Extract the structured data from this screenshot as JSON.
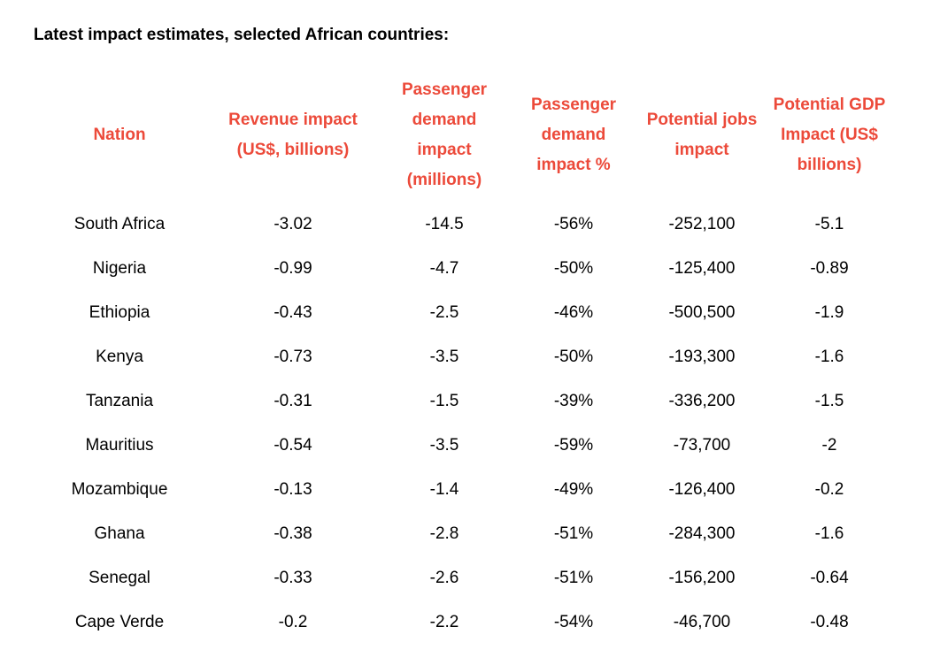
{
  "title": "Latest impact estimates, selected African countries:",
  "colors": {
    "header": "#ec4a3a",
    "text": "#000000",
    "background": "#ffffff"
  },
  "columns": [
    {
      "key": "nation",
      "lines": [
        "Nation"
      ]
    },
    {
      "key": "revenue",
      "lines": [
        "Revenue impact",
        "(US$, billions)"
      ]
    },
    {
      "key": "passengers",
      "lines": [
        "Passenger",
        "demand",
        "impact",
        "(millions)"
      ]
    },
    {
      "key": "passenger_pct",
      "lines": [
        "Passenger",
        "demand",
        "impact %"
      ]
    },
    {
      "key": "jobs",
      "lines": [
        "Potential jobs",
        "impact"
      ]
    },
    {
      "key": "gdp",
      "lines": [
        "Potential GDP",
        "Impact (US$",
        "billions)"
      ]
    }
  ],
  "rows": [
    [
      "South Africa",
      "-3.02",
      "-14.5",
      "-56%",
      "-252,100",
      "-5.1"
    ],
    [
      "Nigeria",
      "-0.99",
      "-4.7",
      "-50%",
      "-125,400",
      "-0.89"
    ],
    [
      "Ethiopia",
      "-0.43",
      "-2.5",
      "-46%",
      "-500,500",
      "-1.9"
    ],
    [
      "Kenya",
      "-0.73",
      "-3.5",
      "-50%",
      "-193,300",
      "-1.6"
    ],
    [
      "Tanzania",
      "-0.31",
      "-1.5",
      "-39%",
      "-336,200",
      "-1.5"
    ],
    [
      "Mauritius",
      "-0.54",
      "-3.5",
      "-59%",
      "-73,700",
      "-2"
    ],
    [
      "Mozambique",
      "-0.13",
      "-1.4",
      "-49%",
      "-126,400",
      "-0.2"
    ],
    [
      "Ghana",
      "-0.38",
      "-2.8",
      "-51%",
      "-284,300",
      "-1.6"
    ],
    [
      "Senegal",
      "-0.33",
      "-2.6",
      "-51%",
      "-156,200",
      "-0.64"
    ],
    [
      "Cape Verde",
      "-0.2",
      "-2.2",
      "-54%",
      "-46,700",
      "-0.48"
    ]
  ],
  "chart_data": {
    "type": "table",
    "title": "Latest impact estimates, selected African countries:",
    "headers": [
      "Nation",
      "Revenue impact (US$, billions)",
      "Passenger demand impact (millions)",
      "Passenger demand impact %",
      "Potential jobs impact",
      "Potential GDP Impact (US$ billions)"
    ],
    "categories": [
      "South Africa",
      "Nigeria",
      "Ethiopia",
      "Kenya",
      "Tanzania",
      "Mauritius",
      "Mozambique",
      "Ghana",
      "Senegal",
      "Cape Verde"
    ],
    "series": [
      {
        "name": "Revenue impact (US$, billions)",
        "values": [
          -3.02,
          -0.99,
          -0.43,
          -0.73,
          -0.31,
          -0.54,
          -0.13,
          -0.38,
          -0.33,
          -0.2
        ]
      },
      {
        "name": "Passenger demand impact (millions)",
        "values": [
          -14.5,
          -4.7,
          -2.5,
          -3.5,
          -1.5,
          -3.5,
          -1.4,
          -2.8,
          -2.6,
          -2.2
        ]
      },
      {
        "name": "Passenger demand impact %",
        "values": [
          -56,
          -50,
          -46,
          -50,
          -39,
          -59,
          -49,
          -51,
          -51,
          -54
        ]
      },
      {
        "name": "Potential jobs impact",
        "values": [
          -252100,
          -125400,
          -500500,
          -193300,
          -336200,
          -73700,
          -126400,
          -284300,
          -156200,
          -46700
        ]
      },
      {
        "name": "Potential GDP Impact (US$ billions)",
        "values": [
          -5.1,
          -0.89,
          -1.9,
          -1.6,
          -1.5,
          -2,
          -0.2,
          -1.6,
          -0.64,
          -0.48
        ]
      }
    ]
  }
}
